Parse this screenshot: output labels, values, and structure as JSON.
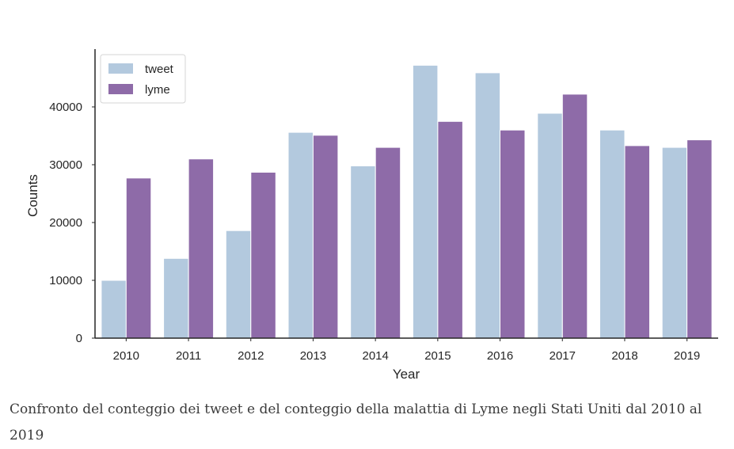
{
  "chart_data": {
    "type": "bar",
    "categories": [
      "2010",
      "2011",
      "2012",
      "2013",
      "2014",
      "2015",
      "2016",
      "2017",
      "2018",
      "2019"
    ],
    "series": [
      {
        "name": "tweet",
        "color": "#b3c9de",
        "values": [
          10000,
          13800,
          18600,
          35600,
          29800,
          47200,
          45900,
          38900,
          36000,
          33000
        ]
      },
      {
        "name": "lyme",
        "color": "#8e6ba8",
        "values": [
          27700,
          31000,
          28700,
          35100,
          33000,
          37500,
          36000,
          42200,
          33300,
          34300
        ]
      }
    ],
    "xlabel": "Year",
    "ylabel": "Counts",
    "ylim": [
      0,
      50000
    ],
    "yticks": [
      0,
      10000,
      20000,
      30000,
      40000
    ],
    "legend_position": "top-left",
    "grid": false
  },
  "caption": "Confronto del conteggio dei tweet e del conteggio della malattia di Lyme negli Stati Uniti dal 2010 al 2019"
}
